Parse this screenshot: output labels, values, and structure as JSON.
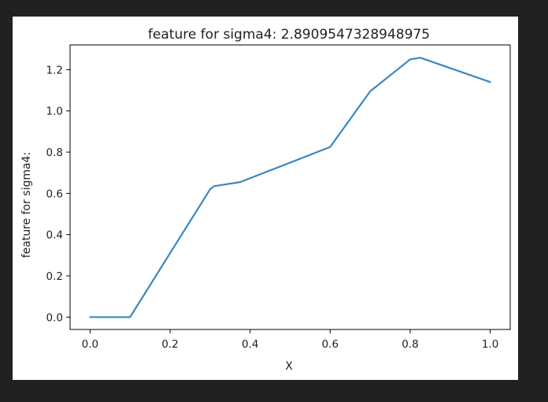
{
  "chart_data": {
    "type": "line",
    "title": "feature for sigma4: 2.8909547328948975",
    "xlabel": "X",
    "ylabel": "feature for sigma4:",
    "xlim": [
      -0.05,
      1.05
    ],
    "ylim": [
      -0.06,
      1.32
    ],
    "xticks": [
      0.0,
      0.2,
      0.4,
      0.6,
      0.8,
      1.0
    ],
    "xtick_labels": [
      "0.0",
      "0.2",
      "0.4",
      "0.6",
      "0.8",
      "1.0"
    ],
    "yticks": [
      0.0,
      0.2,
      0.4,
      0.6,
      0.8,
      1.0,
      1.2
    ],
    "ytick_labels": [
      "0.0",
      "0.2",
      "0.4",
      "0.6",
      "0.8",
      "1.0",
      "1.2"
    ],
    "grid": false,
    "series": [
      {
        "color": "#3a87c2",
        "x": [
          0.0,
          0.1,
          0.2,
          0.3,
          0.31,
          0.375,
          0.6,
          0.7,
          0.8,
          0.825,
          1.0
        ],
        "y": [
          0.0,
          0.0,
          0.31,
          0.62,
          0.635,
          0.655,
          0.825,
          1.095,
          1.25,
          1.258,
          1.14
        ]
      }
    ]
  }
}
